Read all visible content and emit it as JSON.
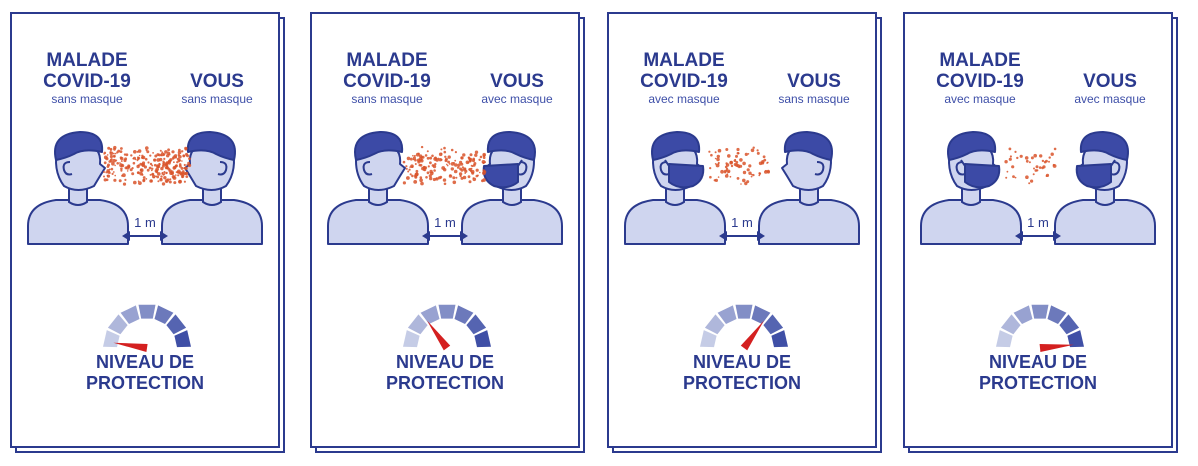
{
  "cards": [
    {
      "left_role": {
        "name_line1": "MALADE",
        "name_line2": "COVID-19",
        "mask_text": "sans masque",
        "masked": false
      },
      "right_role": {
        "name": "VOUS",
        "mask_text": "sans masque",
        "masked": false
      },
      "distance_label": "1 m",
      "protection_level": 0.05,
      "particle_density": "high",
      "level_label_line1": "NIVEAU DE",
      "level_label_line2": "PROTECTION"
    },
    {
      "left_role": {
        "name_line1": "MALADE",
        "name_line2": "COVID-19",
        "mask_text": "sans masque",
        "masked": false
      },
      "right_role": {
        "name": "VOUS",
        "mask_text": "avec masque",
        "masked": true
      },
      "distance_label": "1 m",
      "protection_level": 0.3,
      "particle_density": "medium",
      "level_label_line1": "NIVEAU DE",
      "level_label_line2": "PROTECTION"
    },
    {
      "left_role": {
        "name_line1": "MALADE",
        "name_line2": "COVID-19",
        "mask_text": "avec masque",
        "masked": true
      },
      "right_role": {
        "name": "VOUS",
        "mask_text": "sans masque",
        "masked": false
      },
      "distance_label": "1 m",
      "protection_level": 0.7,
      "particle_density": "low",
      "level_label_line1": "NIVEAU DE",
      "level_label_line2": "PROTECTION"
    },
    {
      "left_role": {
        "name_line1": "MALADE",
        "name_line2": "COVID-19",
        "mask_text": "avec masque",
        "masked": true
      },
      "right_role": {
        "name": "VOUS",
        "mask_text": "avec masque",
        "masked": true
      },
      "distance_label": "1 m",
      "protection_level": 0.97,
      "particle_density": "very-low",
      "level_label_line1": "NIVEAU DE",
      "level_label_line2": "PROTECTION"
    }
  ],
  "colors": {
    "navy": "#2b3a8e",
    "skin": "#cfd5ef",
    "mask": "#3c4aa6",
    "particles": "#d9542a",
    "needle": "#d42020",
    "gauge_light": "#c5cce6",
    "gauge_dark": "#3f4fa6"
  }
}
